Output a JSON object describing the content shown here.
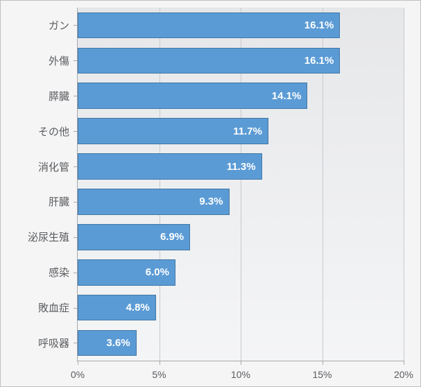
{
  "chart": {
    "type": "bar-horizontal",
    "background_color": "#f5f5f6",
    "plot_bg_gradient_top": "#e6e7e9",
    "plot_bg_gradient_bottom": "#f4f5f6",
    "bar_color": "#5b9bd5",
    "bar_border_color": "#3f77a6",
    "grid_color": "#c6cbd0",
    "axis_line_color": "#a6a9ad",
    "value_label_color": "#ffffff",
    "value_label_fontsize": 15,
    "value_label_fontweight": "bold",
    "category_label_color": "#5a5c5f",
    "category_label_fontsize": 15,
    "tick_label_color": "#5a5c5f",
    "tick_label_fontsize": 14,
    "xlim_min": 0,
    "xlim_max": 20,
    "xtick_step": 5,
    "xticks": [
      {
        "value": 0,
        "label": "0%"
      },
      {
        "value": 5,
        "label": "5%"
      },
      {
        "value": 10,
        "label": "10%"
      },
      {
        "value": 15,
        "label": "15%"
      },
      {
        "value": 20,
        "label": "20%"
      }
    ],
    "bar_width_ratio": 0.74,
    "items": [
      {
        "category": "ガン",
        "value": 16.1,
        "label": "16.1%"
      },
      {
        "category": "外傷",
        "value": 16.1,
        "label": "16.1%"
      },
      {
        "category": "膵臓",
        "value": 14.1,
        "label": "14.1%"
      },
      {
        "category": "その他",
        "value": 11.7,
        "label": "11.7%"
      },
      {
        "category": "消化管",
        "value": 11.3,
        "label": "11.3%"
      },
      {
        "category": "肝臓",
        "value": 9.3,
        "label": "9.3%"
      },
      {
        "category": "泌尿生殖",
        "value": 6.9,
        "label": "6.9%"
      },
      {
        "category": "感染",
        "value": 6.0,
        "label": "6.0%"
      },
      {
        "category": "敗血症",
        "value": 4.8,
        "label": "4.8%"
      },
      {
        "category": "呼吸器",
        "value": 3.6,
        "label": "3.6%"
      }
    ]
  }
}
